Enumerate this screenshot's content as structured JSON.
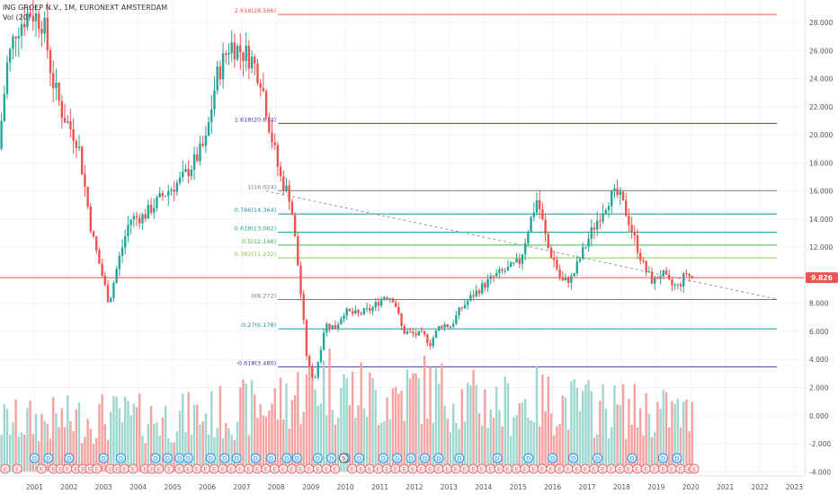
{
  "header": {
    "symbol": "ING GROEP N.V., 1M, EURONEXT AMSTERDAM",
    "indicator": "Vol (20)"
  },
  "colors": {
    "up": "#26a69a",
    "down": "#ef5350",
    "vol_up": "#9fd7cf",
    "vol_down": "#f5a3a1",
    "grid": "#f0f3fa",
    "price_line": "#ef5350"
  },
  "chart_data": {
    "type": "candlestick",
    "x_range": [
      2000.0,
      2023.3
    ],
    "x_ticks": [
      "2001",
      "2002",
      "2003",
      "2004",
      "2005",
      "2006",
      "2007",
      "2008",
      "2009",
      "2010",
      "2011",
      "2012",
      "2013",
      "2014",
      "2015",
      "2016",
      "2017",
      "2018",
      "2019",
      "2020",
      "2021",
      "2022",
      "2023"
    ],
    "y_range": [
      -4.3,
      29.6
    ],
    "y_ticks": [
      "28.000",
      "26.000",
      "24.000",
      "22.000",
      "20.000",
      "18.000",
      "16.000",
      "14.000",
      "12.000",
      "10.000",
      "8.000",
      "6.000",
      "4.000",
      "2.000",
      "0.000",
      "-2.000",
      "-4.000"
    ],
    "last_price": {
      "value": 9.826,
      "label": "9.826"
    },
    "price_path": [
      [
        2000.0,
        19.0
      ],
      [
        2000.25,
        25.0
      ],
      [
        2000.5,
        27.5
      ],
      [
        2000.9,
        28.8
      ],
      [
        2001.3,
        28.0
      ],
      [
        2001.55,
        24.0
      ],
      [
        2001.85,
        21.5
      ],
      [
        2002.3,
        19.5
      ],
      [
        2002.7,
        13.0
      ],
      [
        2002.95,
        10.5
      ],
      [
        2003.2,
        8.0
      ],
      [
        2003.45,
        10.8
      ],
      [
        2003.8,
        14.0
      ],
      [
        2004.2,
        14.2
      ],
      [
        2004.5,
        15.0
      ],
      [
        2004.9,
        16.0
      ],
      [
        2005.3,
        16.8
      ],
      [
        2005.7,
        18.2
      ],
      [
        2006.0,
        19.5
      ],
      [
        2006.3,
        24.0
      ],
      [
        2006.7,
        26.5
      ],
      [
        2007.0,
        26.0
      ],
      [
        2007.3,
        25.5
      ],
      [
        2007.6,
        24.0
      ],
      [
        2007.85,
        20.5
      ],
      [
        2008.15,
        17.0
      ],
      [
        2008.45,
        15.5
      ],
      [
        2008.7,
        10.0
      ],
      [
        2008.95,
        3.5
      ],
      [
        2009.15,
        2.6
      ],
      [
        2009.45,
        6.5
      ],
      [
        2009.75,
        6.3
      ],
      [
        2010.0,
        7.4
      ],
      [
        2010.4,
        7.2
      ],
      [
        2010.8,
        7.6
      ],
      [
        2011.2,
        8.6
      ],
      [
        2011.45,
        8.3
      ],
      [
        2011.7,
        6.0
      ],
      [
        2012.0,
        5.8
      ],
      [
        2012.3,
        5.7
      ],
      [
        2012.5,
        5.2
      ],
      [
        2012.8,
        6.5
      ],
      [
        2013.1,
        6.4
      ],
      [
        2013.35,
        7.5
      ],
      [
        2013.7,
        8.5
      ],
      [
        2014.0,
        9.2
      ],
      [
        2014.4,
        10.0
      ],
      [
        2014.8,
        10.5
      ],
      [
        2015.1,
        11.0
      ],
      [
        2015.35,
        13.5
      ],
      [
        2015.6,
        15.5
      ],
      [
        2015.9,
        12.0
      ],
      [
        2016.1,
        11.0
      ],
      [
        2016.3,
        9.5
      ],
      [
        2016.6,
        9.8
      ],
      [
        2016.9,
        11.6
      ],
      [
        2017.15,
        13.0
      ],
      [
        2017.45,
        14.5
      ],
      [
        2017.7,
        15.6
      ],
      [
        2017.95,
        15.7
      ],
      [
        2018.2,
        14.3
      ],
      [
        2018.45,
        12.3
      ],
      [
        2018.7,
        10.5
      ],
      [
        2018.95,
        9.5
      ],
      [
        2019.2,
        10.2
      ],
      [
        2019.45,
        9.3
      ],
      [
        2019.7,
        9.2
      ],
      [
        2019.9,
        10.2
      ],
      [
        2020.05,
        9.826
      ]
    ],
    "fib_levels": [
      {
        "label": "2.618(28.566)",
        "value": 28.566,
        "color": "#ef5350"
      },
      {
        "label": "1.618(20.814)",
        "value": 20.814,
        "color": "#3b3bb5"
      },
      {
        "label": "1(16.024)",
        "value": 16.024,
        "color": "#787b86"
      },
      {
        "label": "0.786(14.364)",
        "value": 14.364,
        "color": "#2196a6"
      },
      {
        "label": "0.618(13.062)",
        "value": 13.062,
        "color": "#26a69a"
      },
      {
        "label": "0.5(12.148)",
        "value": 12.148,
        "color": "#4caf50"
      },
      {
        "label": "0.382(11.232)",
        "value": 11.232,
        "color": "#8bc34a"
      },
      {
        "label": "0(8.272)",
        "value": 8.272,
        "color": "#787b86"
      },
      {
        "label": "-0.27(6.178)",
        "value": 6.178,
        "color": "#2196a6"
      },
      {
        "label": "-0.618(3.480)",
        "value": 3.48,
        "color": "#3b3bb5"
      }
    ],
    "fib_x_range": [
      2008.05,
      2022.5
    ],
    "trendline": {
      "from": [
        2007.7,
        16.0
      ],
      "to": [
        2022.5,
        8.3
      ]
    },
    "volume_peaks": [
      [
        2000.0,
        1.2
      ],
      [
        2002.0,
        1.5
      ],
      [
        2003.0,
        1.8
      ],
      [
        2004.0,
        1.6
      ],
      [
        2005.0,
        1.7
      ],
      [
        2006.0,
        2.0
      ],
      [
        2007.0,
        2.6
      ],
      [
        2008.0,
        3.2
      ],
      [
        2008.9,
        4.8
      ],
      [
        2009.4,
        5.8
      ],
      [
        2010.0,
        4.5
      ],
      [
        2011.0,
        3.8
      ],
      [
        2011.8,
        4.5
      ],
      [
        2012.2,
        4.8
      ],
      [
        2012.8,
        4.2
      ],
      [
        2013.5,
        3.5
      ],
      [
        2014.5,
        3.0
      ],
      [
        2015.5,
        3.6
      ],
      [
        2016.5,
        3.0
      ],
      [
        2017.5,
        2.6
      ],
      [
        2018.5,
        2.4
      ],
      [
        2019.5,
        2.2
      ],
      [
        2020.0,
        1.6
      ]
    ],
    "volume_floor": -4.0,
    "events": {
      "dividend_label": "D",
      "earnings_label": "E",
      "split_label": "S",
      "dividend_dates": [
        2001.0,
        2001.4,
        2002.0,
        2003.0,
        2003.5,
        2004.5,
        2004.85,
        2005.2,
        2005.45,
        2006.1,
        2006.5,
        2006.85,
        2007.4,
        2007.85,
        2008.3,
        2008.6,
        2009.2,
        2009.6,
        2010.0,
        2010.4,
        2011.1,
        2011.5,
        2011.9,
        2012.3,
        2012.7,
        2013.3,
        2014.4,
        2015.3,
        2016.0,
        2016.6,
        2017.3,
        2018.3,
        2019.2,
        2019.6
      ],
      "split_dates": [
        2009.95
      ],
      "earnings_dates": [
        2000.15,
        2000.5,
        2001.2,
        2001.55,
        2001.75,
        2001.95,
        2002.2,
        2002.4,
        2002.6,
        2002.8,
        2003.2,
        2003.4,
        2003.6,
        2003.85,
        2004.2,
        2004.4,
        2004.6,
        2004.9,
        2005.2,
        2005.45,
        2005.7,
        2005.95,
        2006.2,
        2006.45,
        2006.7,
        2006.95,
        2007.2,
        2007.45,
        2007.7,
        2007.95,
        2008.2,
        2008.45,
        2008.7,
        2008.95,
        2009.2,
        2009.45,
        2009.7,
        2010.2,
        2010.45,
        2010.7,
        2010.95,
        2011.2,
        2011.45,
        2011.7,
        2011.95,
        2012.2,
        2012.45,
        2012.7,
        2012.95,
        2013.2,
        2013.45,
        2013.7,
        2013.95,
        2014.2,
        2014.45,
        2014.7,
        2014.95,
        2015.2,
        2015.45,
        2015.7,
        2015.95,
        2016.2,
        2016.45,
        2016.7,
        2016.95,
        2017.2,
        2017.45,
        2017.7,
        2017.95,
        2018.2,
        2018.45,
        2018.7,
        2018.95,
        2019.2,
        2019.45,
        2019.7,
        2019.95,
        2020.1
      ]
    }
  }
}
